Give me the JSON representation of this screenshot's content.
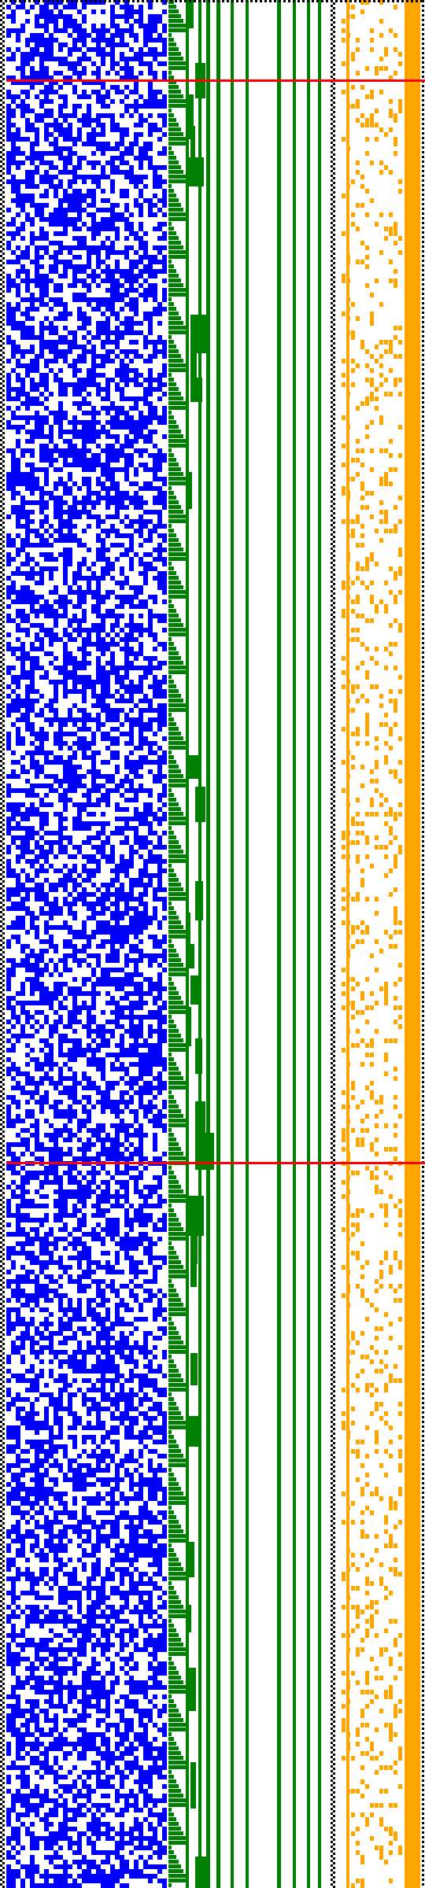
{
  "colors": {
    "background": "#ffffff",
    "noise_a": "#0000ff",
    "staircase_b": "#008000",
    "noise_c": "#ffa500",
    "dotted_border": "#000000",
    "marker": "#ff0000"
  },
  "panels": [
    {
      "name": "noise-panel-a",
      "color": "noise_a",
      "fill_density": 0.55
    },
    {
      "name": "staircase-panel-b",
      "color": "staircase_b"
    },
    {
      "name": "noise-panel-c",
      "color": "noise_c",
      "fill_density": 0.2
    }
  ]
}
